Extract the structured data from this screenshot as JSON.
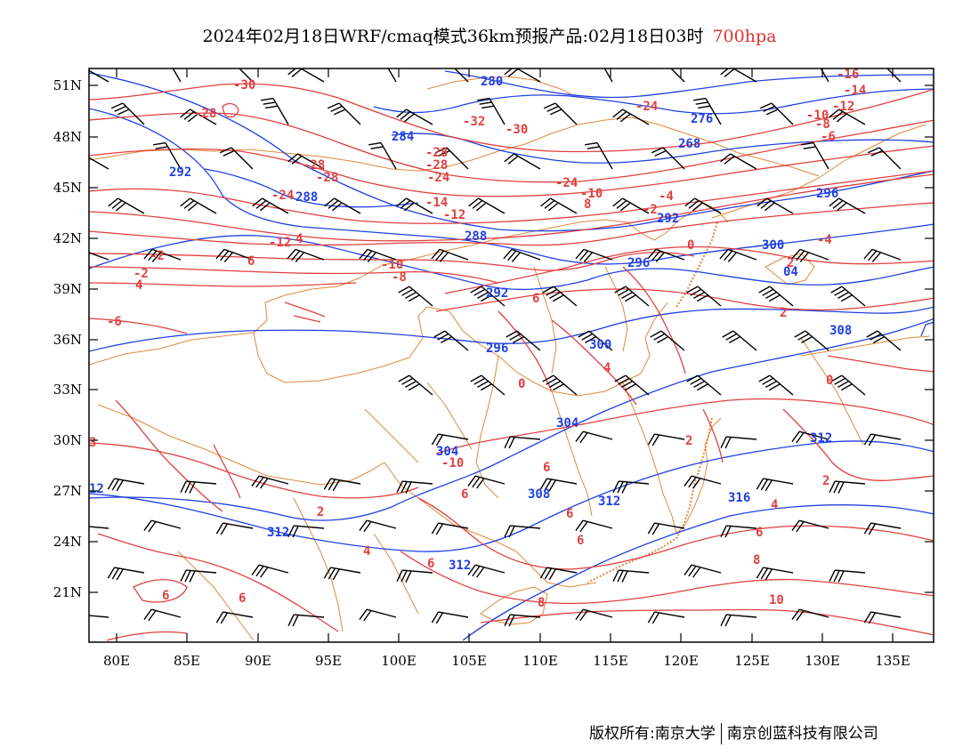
{
  "title": {
    "main": "2024年02月18日WRF/cmaq模式36km预报产品:02月18日03时",
    "level": "700hpa"
  },
  "copyright": {
    "left": "版权所有:南京大学",
    "right": "南京创蓝科技有限公司"
  },
  "colors": {
    "temperature": "#e04040",
    "height": "#2040e0",
    "boundary": "#e0883a",
    "wind": "#000000"
  },
  "axes": {
    "lon_ticks": [
      "80E",
      "85E",
      "90E",
      "95E",
      "100E",
      "105E",
      "110E",
      "115E",
      "120E",
      "125E",
      "130E",
      "135E"
    ],
    "lat_ticks": [
      "51N",
      "48N",
      "45N",
      "42N",
      "39N",
      "36N",
      "33N",
      "30N",
      "27N",
      "24N",
      "21N"
    ]
  },
  "height_labels": [
    "280",
    "284",
    "276",
    "268",
    "292",
    "288",
    "296",
    "300",
    "304",
    "308",
    "312",
    "316"
  ],
  "temperature_labels": [
    "-30",
    "-28",
    "-32",
    "-30",
    "-24",
    "-16",
    "-14",
    "-12",
    "-10",
    "-8",
    "-6",
    "-4",
    "-2",
    "0",
    "2",
    "4",
    "6",
    "8",
    "10"
  ],
  "icons": [
    "wind-barb",
    "temperature-contour",
    "height-contour",
    "province-boundary"
  ]
}
